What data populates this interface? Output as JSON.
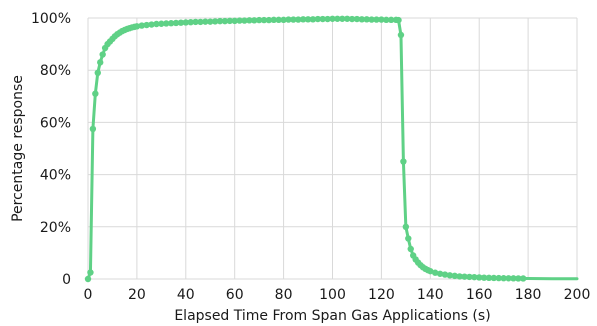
{
  "chart_data": {
    "type": "line",
    "title": "",
    "xlabel": "Elapsed Time From Span Gas Applications (s)",
    "ylabel": "Percentage response",
    "xlim": [
      0,
      200
    ],
    "ylim": [
      0,
      100
    ],
    "x_ticks": [
      0,
      20,
      40,
      60,
      80,
      100,
      120,
      140,
      160,
      180,
      200
    ],
    "y_ticks": [
      0,
      20,
      40,
      60,
      80,
      100
    ],
    "x_tick_labels": [
      "0",
      "20",
      "40",
      "60",
      "80",
      "100",
      "120",
      "140",
      "160",
      "180",
      "200"
    ],
    "y_tick_labels": [
      "0",
      "20%",
      "40%",
      "60%",
      "80%",
      "100%"
    ],
    "grid": true,
    "legend": "none",
    "colors": {
      "series": "#5fd186",
      "grid": "#d9d9d9",
      "text": "#1a1a1a"
    },
    "series": [
      {
        "values": [
          [
            0,
            0
          ],
          [
            1,
            2.5
          ],
          [
            2,
            57.5
          ],
          [
            3,
            71
          ],
          [
            4,
            79
          ],
          [
            5,
            83
          ],
          [
            6,
            86
          ],
          [
            7,
            88.5
          ],
          [
            8,
            90
          ],
          [
            9,
            91
          ],
          [
            10,
            92
          ],
          [
            11,
            93
          ],
          [
            12,
            93.8
          ],
          [
            13,
            94.4
          ],
          [
            14,
            95
          ],
          [
            15,
            95.4
          ],
          [
            16,
            95.8
          ],
          [
            17,
            96.1
          ],
          [
            18,
            96.4
          ],
          [
            19,
            96.6
          ],
          [
            20,
            96.8
          ],
          [
            22,
            97.1
          ],
          [
            24,
            97.3
          ],
          [
            26,
            97.5
          ],
          [
            28,
            97.7
          ],
          [
            30,
            97.8
          ],
          [
            32,
            97.9
          ],
          [
            34,
            98
          ],
          [
            36,
            98.1
          ],
          [
            38,
            98.2
          ],
          [
            40,
            98.3
          ],
          [
            42,
            98.4
          ],
          [
            44,
            98.5
          ],
          [
            46,
            98.5
          ],
          [
            48,
            98.6
          ],
          [
            50,
            98.6
          ],
          [
            52,
            98.7
          ],
          [
            54,
            98.8
          ],
          [
            56,
            98.8
          ],
          [
            58,
            98.9
          ],
          [
            60,
            98.9
          ],
          [
            62,
            99
          ],
          [
            64,
            99
          ],
          [
            66,
            99.1
          ],
          [
            68,
            99.1
          ],
          [
            70,
            99.2
          ],
          [
            72,
            99.2
          ],
          [
            74,
            99.2
          ],
          [
            76,
            99.3
          ],
          [
            78,
            99.3
          ],
          [
            80,
            99.3
          ],
          [
            82,
            99.4
          ],
          [
            84,
            99.4
          ],
          [
            86,
            99.4
          ],
          [
            88,
            99.5
          ],
          [
            90,
            99.5
          ],
          [
            92,
            99.5
          ],
          [
            94,
            99.6
          ],
          [
            96,
            99.6
          ],
          [
            98,
            99.6
          ],
          [
            100,
            99.7
          ],
          [
            102,
            99.7
          ],
          [
            104,
            99.7
          ],
          [
            106,
            99.7
          ],
          [
            108,
            99.6
          ],
          [
            110,
            99.6
          ],
          [
            112,
            99.5
          ],
          [
            114,
            99.5
          ],
          [
            116,
            99.4
          ],
          [
            118,
            99.4
          ],
          [
            120,
            99.4
          ],
          [
            122,
            99.3
          ],
          [
            124,
            99.3
          ],
          [
            126,
            99.3
          ],
          [
            127,
            99.2
          ],
          [
            128,
            93.5
          ],
          [
            129,
            45
          ],
          [
            130,
            20
          ],
          [
            131,
            15.5
          ],
          [
            132,
            11.5
          ],
          [
            133,
            9
          ],
          [
            134,
            7.5
          ],
          [
            135,
            6.3
          ],
          [
            136,
            5.3
          ],
          [
            137,
            4.5
          ],
          [
            138,
            3.9
          ],
          [
            139,
            3.4
          ],
          [
            140,
            3
          ],
          [
            142,
            2.4
          ],
          [
            144,
            2
          ],
          [
            146,
            1.7
          ],
          [
            148,
            1.4
          ],
          [
            150,
            1.2
          ],
          [
            152,
            1
          ],
          [
            154,
            0.9
          ],
          [
            156,
            0.8
          ],
          [
            158,
            0.7
          ],
          [
            160,
            0.6
          ],
          [
            162,
            0.5
          ],
          [
            164,
            0.45
          ],
          [
            166,
            0.4
          ],
          [
            168,
            0.35
          ],
          [
            170,
            0.3
          ],
          [
            172,
            0.28
          ],
          [
            174,
            0.25
          ],
          [
            176,
            0.22
          ],
          [
            178,
            0.2
          ],
          [
            180,
            0.18
          ],
          [
            185,
            0.15
          ],
          [
            190,
            0.12
          ],
          [
            195,
            0.1
          ],
          [
            200,
            0.08
          ]
        ],
        "markers_until_x": 178
      }
    ]
  }
}
